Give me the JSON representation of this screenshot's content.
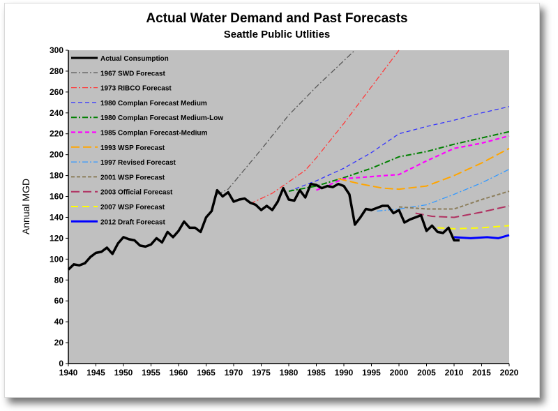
{
  "chart_data": {
    "type": "line",
    "title": "Actual Water Demand and Past Forecasts",
    "subtitle": "Seattle Public Utlities",
    "xlabel": "",
    "ylabel": "Annual MGD",
    "xlim": [
      1940,
      2020
    ],
    "ylim": [
      0,
      300
    ],
    "xticks": [
      1940,
      1945,
      1950,
      1955,
      1960,
      1965,
      1970,
      1975,
      1980,
      1985,
      1990,
      1995,
      2000,
      2005,
      2010,
      2015,
      2020
    ],
    "yticks": [
      0,
      20,
      40,
      60,
      80,
      100,
      120,
      140,
      160,
      180,
      200,
      220,
      240,
      260,
      280,
      300
    ],
    "background": "#c0c0c0",
    "grid": false,
    "legend_position": "top-left",
    "series": [
      {
        "name": "Actual Consumption",
        "color": "#000000",
        "dash": "solid",
        "width": 3.5,
        "x": [
          1940,
          1941,
          1942,
          1943,
          1944,
          1945,
          1946,
          1947,
          1948,
          1949,
          1950,
          1951,
          1952,
          1953,
          1954,
          1955,
          1956,
          1957,
          1958,
          1959,
          1960,
          1961,
          1962,
          1963,
          1964,
          1965,
          1966,
          1967,
          1968,
          1969,
          1970,
          1971,
          1972,
          1973,
          1974,
          1975,
          1976,
          1977,
          1978,
          1979,
          1980,
          1981,
          1982,
          1983,
          1984,
          1985,
          1986,
          1987,
          1988,
          1989,
          1990,
          1991,
          1992,
          1993,
          1994,
          1995,
          1996,
          1997,
          1998,
          1999,
          2000,
          2001,
          2002,
          2003,
          2004,
          2005,
          2006,
          2007,
          2008,
          2009,
          2010,
          2011
        ],
        "y": [
          90,
          95,
          94,
          96,
          102,
          106,
          107,
          111,
          105,
          115,
          121,
          119,
          118,
          113,
          112,
          114,
          120,
          116,
          126,
          121,
          127,
          136,
          130,
          130,
          126,
          140,
          146,
          166,
          160,
          164,
          155,
          157,
          158,
          154,
          152,
          147,
          151,
          147,
          155,
          168,
          157,
          156,
          166,
          159,
          172,
          171,
          168,
          170,
          169,
          172,
          170,
          162,
          133,
          140,
          148,
          147,
          149,
          151,
          151,
          144,
          147,
          135,
          138,
          140,
          142,
          127,
          132,
          126,
          125,
          130,
          118,
          118
        ]
      },
      {
        "name": "1967 SWD Forecast",
        "color": "#5a5a5a",
        "dash": "8,3,2,3",
        "width": 1.3,
        "x": [
          1967,
          1969,
          1975,
          1980,
          1985,
          1990,
          1992
        ],
        "y": [
          162,
          167,
          205,
          238,
          265,
          290,
          300
        ]
      },
      {
        "name": "1973 RIBCO Forecast",
        "color": "#ff3b3b",
        "dash": "8,3,2,3",
        "width": 1.3,
        "x": [
          1973,
          1977,
          1983,
          1985,
          1990,
          1995,
          2000
        ],
        "y": [
          153,
          163,
          185,
          197,
          230,
          265,
          300
        ]
      },
      {
        "name": "1980 Complan Forecast Medium",
        "color": "#3333ff",
        "dash": "6,4",
        "width": 1.3,
        "x": [
          1980,
          1985,
          1990,
          1995,
          2000,
          2005,
          2010,
          2015,
          2020
        ],
        "y": [
          165,
          175,
          187,
          202,
          220,
          227,
          233,
          240,
          246
        ]
      },
      {
        "name": "1980 Complan Forecast Medium-Low",
        "color": "#008000",
        "dash": "8,3,2,3",
        "width": 2,
        "x": [
          1980,
          1985,
          1990,
          1995,
          2000,
          2005,
          2010,
          2015,
          2020
        ],
        "y": [
          165,
          170,
          178,
          187,
          198,
          203,
          210,
          216,
          222
        ]
      },
      {
        "name": "1985 Complan Forecast-Medium",
        "color": "#ff00ff",
        "dash": "6,4",
        "width": 2.2,
        "x": [
          1985,
          1990,
          1995,
          2000,
          2005,
          2010,
          2015,
          2020
        ],
        "y": [
          166,
          177,
          179,
          181,
          194,
          206,
          211,
          218
        ]
      },
      {
        "name": "1993 WSP Forecast",
        "color": "#ffa500",
        "dash": "12,5",
        "width": 2,
        "x": [
          1989,
          1993,
          1997,
          2000,
          2005,
          2010,
          2015,
          2020
        ],
        "y": [
          177,
          172,
          168,
          167,
          170,
          180,
          192,
          206
        ]
      },
      {
        "name": "1997 Revised Forecast",
        "color": "#3399ff",
        "dash": "8,3,2,3",
        "width": 1.3,
        "x": [
          1996,
          2000,
          2005,
          2010,
          2015,
          2020
        ],
        "y": [
          146,
          148,
          152,
          162,
          173,
          186
        ]
      },
      {
        "name": "2001 WSP Forecast",
        "color": "#8b7d5a",
        "dash": "5,3",
        "width": 2,
        "x": [
          2000,
          2005,
          2010,
          2015,
          2020
        ],
        "y": [
          150,
          148,
          148,
          157,
          165
        ]
      },
      {
        "name": "2003 Official Forecast",
        "color": "#b03060",
        "dash": "12,5",
        "width": 2,
        "x": [
          2003,
          2006,
          2010,
          2015,
          2020
        ],
        "y": [
          144,
          141,
          140,
          145,
          151
        ]
      },
      {
        "name": "2007 WSP Forecast",
        "color": "#ffff00",
        "dash": "10,6",
        "width": 2,
        "x": [
          2007,
          2010,
          2015,
          2020
        ],
        "y": [
          130,
          129,
          130,
          132
        ]
      },
      {
        "name": "2012 Draft Forecast",
        "color": "#0000ff",
        "dash": "solid",
        "width": 3,
        "x": [
          2010,
          2013,
          2016,
          2018,
          2020
        ],
        "y": [
          121,
          120,
          121,
          120,
          123
        ]
      }
    ]
  }
}
